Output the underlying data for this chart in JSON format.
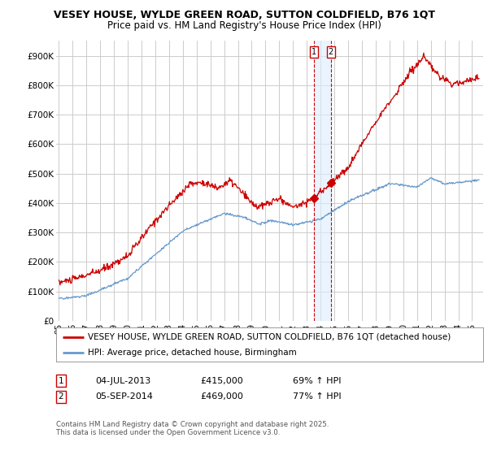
{
  "title": "VESEY HOUSE, WYLDE GREEN ROAD, SUTTON COLDFIELD, B76 1QT",
  "subtitle": "Price paid vs. HM Land Registry's House Price Index (HPI)",
  "ylim": [
    0,
    950000
  ],
  "yticks": [
    0,
    100000,
    200000,
    300000,
    400000,
    500000,
    600000,
    700000,
    800000,
    900000
  ],
  "ytick_labels": [
    "£0",
    "£100K",
    "£200K",
    "£300K",
    "£400K",
    "£500K",
    "£600K",
    "£700K",
    "£800K",
    "£900K"
  ],
  "background_color": "#ffffff",
  "plot_bg_color": "#ffffff",
  "grid_color": "#cccccc",
  "red_color": "#cc0000",
  "blue_color": "#6699cc",
  "blue_shade_color": "#ddeeff",
  "marker1_x": 2013.5,
  "marker1_price": 415000,
  "marker2_x": 2014.75,
  "marker2_price": 469000,
  "legend_label_red": "VESEY HOUSE, WYLDE GREEN ROAD, SUTTON COLDFIELD, B76 1QT (detached house)",
  "legend_label_blue": "HPI: Average price, detached house, Birmingham",
  "footer": "Contains HM Land Registry data © Crown copyright and database right 2025.\nThis data is licensed under the Open Government Licence v3.0.",
  "title_fontsize": 9,
  "subtitle_fontsize": 8.5,
  "tick_fontsize": 7.5,
  "legend_fontsize": 7.5,
  "note_fontsize": 8
}
